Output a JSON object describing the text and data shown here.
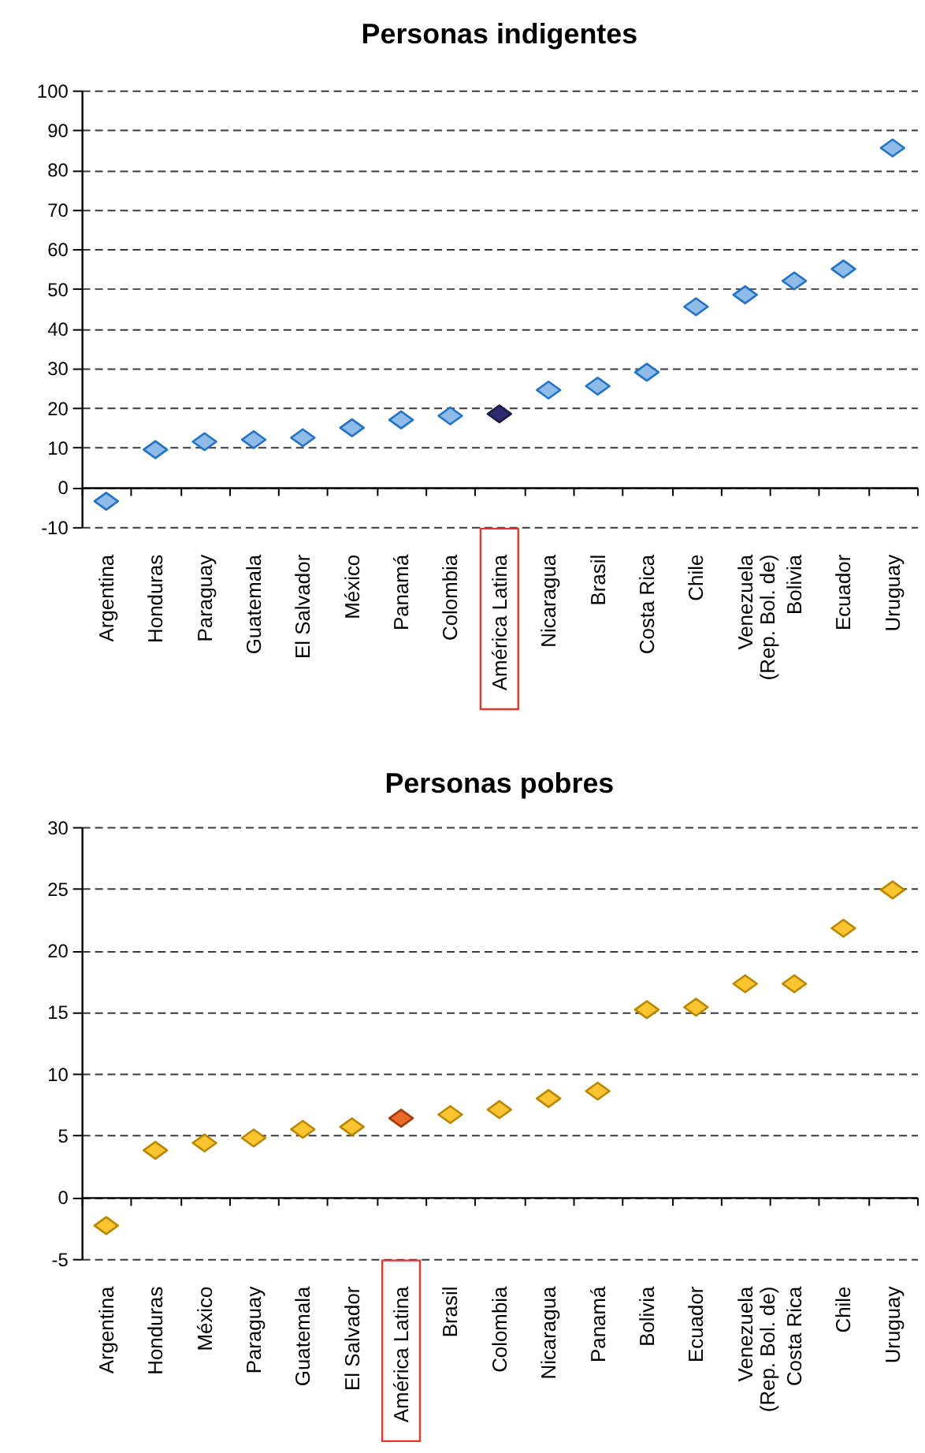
{
  "chart_data": [
    {
      "type": "scatter",
      "title": "Personas indigentes",
      "categories": [
        "Argentina",
        "Honduras",
        "Paraguay",
        "Guatemala",
        "El Salvador",
        "México",
        "Panamá",
        "Colombia",
        "América Latina",
        "Nicaragua",
        "Brasil",
        "Costa Rica",
        "Chile",
        "Venezuela\n(Rep. Bol. de)",
        "Bolivia",
        "Ecuador",
        "Uruguay"
      ],
      "series": [
        {
          "colors": [
            "#8fbbe8",
            "#8fbbe8",
            "#8fbbe8",
            "#8fbbe8",
            "#8fbbe8",
            "#8fbbe8",
            "#8fbbe8",
            "#8fbbe8",
            "#2e2b6e",
            "#8fbbe8",
            "#8fbbe8",
            "#8fbbe8",
            "#8fbbe8",
            "#8fbbe8",
            "#8fbbe8",
            "#8fbbe8",
            "#8fbbe8"
          ],
          "values": [
            -3.5,
            9.5,
            11.5,
            12,
            12.5,
            15,
            17,
            18,
            18.5,
            24.5,
            25.5,
            29,
            45.5,
            48.5,
            52,
            55,
            85.5
          ]
        }
      ],
      "ylim": [
        -10,
        100
      ],
      "yticks": [
        -10,
        0,
        10,
        20,
        30,
        40,
        50,
        60,
        70,
        80,
        90,
        100
      ],
      "grid": "y",
      "marker": "diamond"
    },
    {
      "type": "scatter",
      "title": "Personas pobres",
      "categories": [
        "Argentina",
        "Honduras",
        "México",
        "Paraguay",
        "Guatemala",
        "El Salvador",
        "América Latina",
        "Brasil",
        "Colombia",
        "Nicaragua",
        "Panamá",
        "Bolivia",
        "Ecuador",
        "Venezuela\n(Rep. Bol. de)",
        "Costa Rica",
        "Chile",
        "Uruguay"
      ],
      "series": [
        {
          "colors": [
            "#fcc42e",
            "#fcc42e",
            "#fcc42e",
            "#fcc42e",
            "#fcc42e",
            "#fcc42e",
            "#ea6a2a",
            "#fcc42e",
            "#fcc42e",
            "#fcc42e",
            "#fcc42e",
            "#fcc42e",
            "#fcc42e",
            "#fcc42e",
            "#fcc42e",
            "#fcc42e",
            "#fcc42e"
          ],
          "values": [
            -2.3,
            3.8,
            4.4,
            4.8,
            5.5,
            5.7,
            6.4,
            6.7,
            7.1,
            8,
            8.6,
            15.2,
            15.4,
            17.3,
            17.3,
            21.8,
            24.9
          ]
        }
      ],
      "ylim": [
        -5,
        30
      ],
      "yticks": [
        -5,
        0,
        5,
        10,
        15,
        20,
        25,
        30
      ],
      "grid": "y",
      "marker": "diamond"
    }
  ]
}
